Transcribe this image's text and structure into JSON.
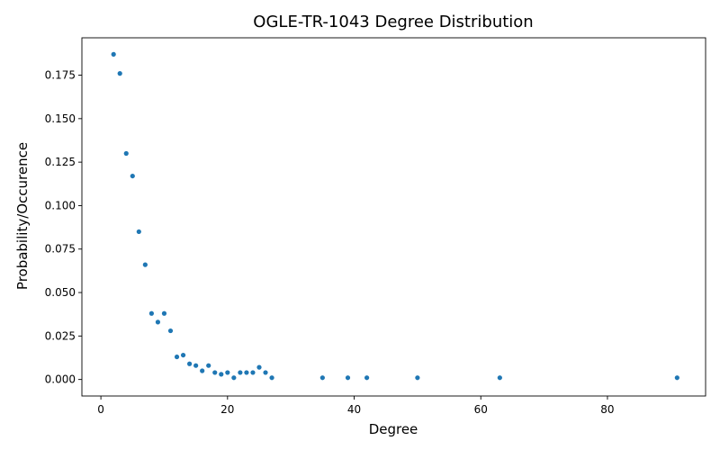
{
  "chart_data": {
    "type": "scatter",
    "title": "OGLE-TR-1043 Degree Distribution",
    "xlabel": "Degree",
    "ylabel": "Probability/Occurence",
    "xlim": [
      -3,
      95.5
    ],
    "ylim": [
      -0.0095,
      0.1965
    ],
    "xticks": [
      0,
      20,
      40,
      60,
      80
    ],
    "yticks": [
      0.0,
      0.025,
      0.05,
      0.075,
      0.1,
      0.125,
      0.15,
      0.175
    ],
    "ytick_labels": [
      "0.000",
      "0.025",
      "0.050",
      "0.075",
      "0.100",
      "0.125",
      "0.150",
      "0.175"
    ],
    "point_color": "#1f77b4",
    "grid": false,
    "legend": false,
    "points": [
      {
        "x": 2,
        "y": 0.187
      },
      {
        "x": 3,
        "y": 0.176
      },
      {
        "x": 4,
        "y": 0.13
      },
      {
        "x": 5,
        "y": 0.117
      },
      {
        "x": 6,
        "y": 0.085
      },
      {
        "x": 7,
        "y": 0.066
      },
      {
        "x": 8,
        "y": 0.038
      },
      {
        "x": 9,
        "y": 0.033
      },
      {
        "x": 10,
        "y": 0.038
      },
      {
        "x": 11,
        "y": 0.028
      },
      {
        "x": 12,
        "y": 0.013
      },
      {
        "x": 13,
        "y": 0.014
      },
      {
        "x": 14,
        "y": 0.009
      },
      {
        "x": 15,
        "y": 0.008
      },
      {
        "x": 16,
        "y": 0.005
      },
      {
        "x": 17,
        "y": 0.008
      },
      {
        "x": 18,
        "y": 0.004
      },
      {
        "x": 19,
        "y": 0.003
      },
      {
        "x": 20,
        "y": 0.004
      },
      {
        "x": 21,
        "y": 0.001
      },
      {
        "x": 22,
        "y": 0.004
      },
      {
        "x": 23,
        "y": 0.004
      },
      {
        "x": 24,
        "y": 0.004
      },
      {
        "x": 25,
        "y": 0.007
      },
      {
        "x": 26,
        "y": 0.004
      },
      {
        "x": 27,
        "y": 0.001
      },
      {
        "x": 35,
        "y": 0.001
      },
      {
        "x": 39,
        "y": 0.001
      },
      {
        "x": 42,
        "y": 0.001
      },
      {
        "x": 50,
        "y": 0.001
      },
      {
        "x": 63,
        "y": 0.001
      },
      {
        "x": 91,
        "y": 0.001
      }
    ]
  }
}
